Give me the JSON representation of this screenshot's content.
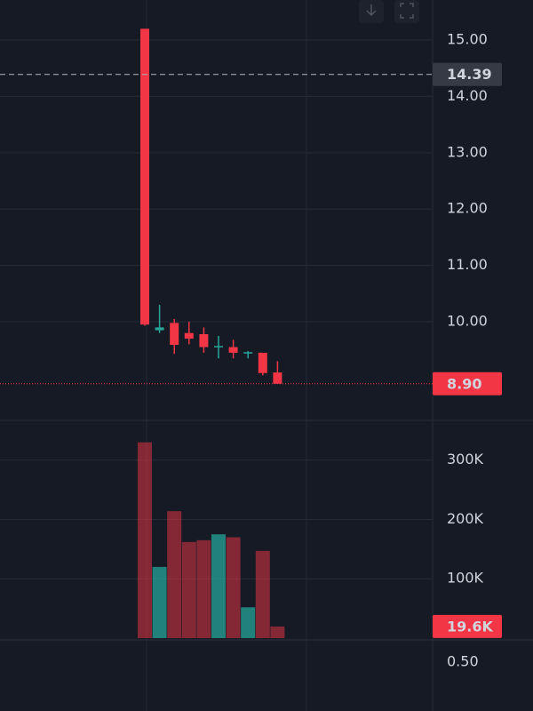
{
  "chart_data": [
    {
      "type": "candlestick",
      "open": [
        15.2,
        9.85,
        9.98,
        9.8,
        9.78,
        9.55,
        9.55,
        9.45,
        9.45,
        9.1
      ],
      "high": [
        15.2,
        10.3,
        10.05,
        10.0,
        9.9,
        9.75,
        9.68,
        9.48,
        9.45,
        9.3
      ],
      "low": [
        9.93,
        9.8,
        9.43,
        9.6,
        9.45,
        9.35,
        9.35,
        9.35,
        9.05,
        8.9
      ],
      "close": [
        9.95,
        9.9,
        9.59,
        9.7,
        9.55,
        9.57,
        9.45,
        9.46,
        9.09,
        8.9
      ],
      "up_color": "#26a69a",
      "down_color": "#f23645",
      "ylim": [
        8.25,
        15.71
      ],
      "yticks": [
        {
          "value": 10,
          "label": "10.00"
        },
        {
          "value": 11,
          "label": "11.00"
        },
        {
          "value": 12,
          "label": "12.00"
        },
        {
          "value": 13,
          "label": "13.00"
        },
        {
          "value": 14,
          "label": "14.00"
        },
        {
          "value": 15,
          "label": "15.00"
        }
      ],
      "grid": true,
      "price_lines": [
        {
          "value": 14.39,
          "color": "#b2b5be",
          "style": "dashed"
        },
        {
          "value": 8.9,
          "label": "8.90",
          "color": "#f23645",
          "style": "dotted"
        }
      ]
    },
    {
      "type": "volume",
      "values": [
        330000,
        120000,
        214000,
        162000,
        165000,
        175000,
        170000,
        52000,
        147000,
        19600
      ],
      "ylim": [
        0,
        367000
      ],
      "yticks": [
        {
          "value": 100000,
          "label": "100K"
        },
        {
          "value": 200000,
          "label": "200K"
        },
        {
          "value": 300000,
          "label": "300K"
        }
      ],
      "grid": true,
      "last_value": {
        "value": 19600,
        "label": "19.6K"
      }
    },
    {
      "type": "indicator",
      "ylim": [
        0,
        0.73
      ],
      "yticks": [
        {
          "value": 0.5,
          "label": "0.50"
        }
      ]
    }
  ]
}
